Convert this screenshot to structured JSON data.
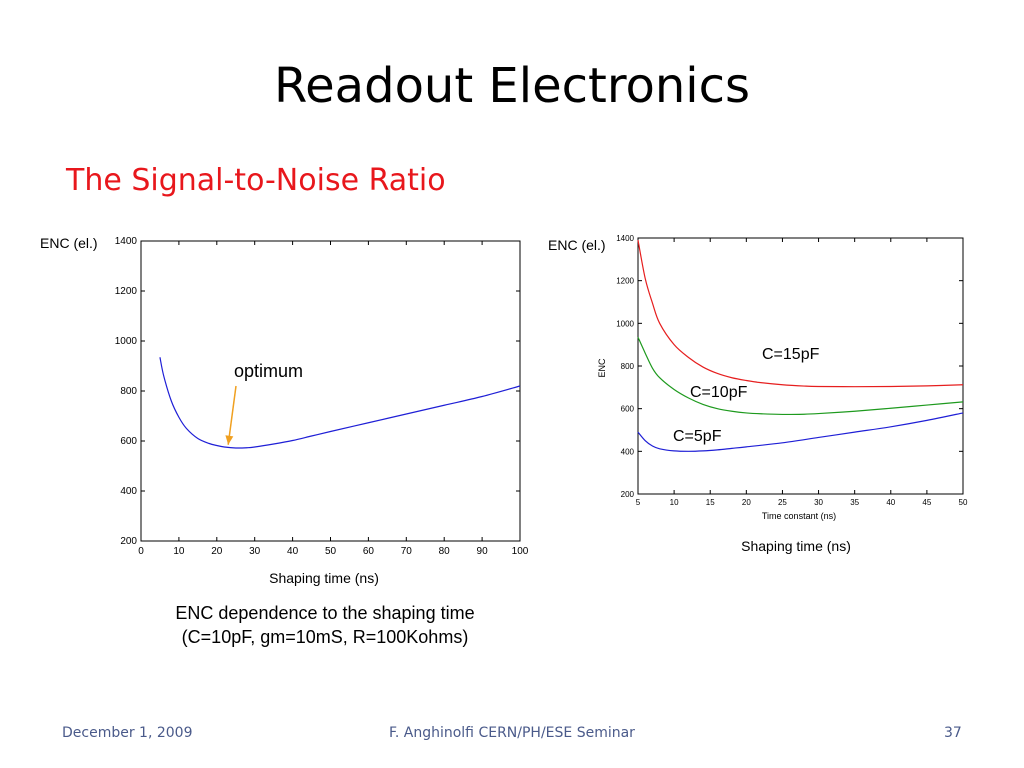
{
  "slide": {
    "title": "Readout Electronics",
    "subtitle": "The Signal-to-Noise Ratio",
    "caption_line1": "ENC dependence to the shaping time",
    "caption_line2": "(C=10pF, gm=10mS, R=100Kohms)"
  },
  "footer": {
    "date": "December 1, 2009",
    "center": "F. Anghinolfi CERN/PH/ESE Seminar",
    "page": "37"
  },
  "colors": {
    "title": "#000000",
    "subtitle": "#e8171c",
    "footer": "#4a5a8a",
    "blue": "#1f1fd6",
    "green": "#1e9a1e",
    "red": "#e61e1e",
    "arrow": "#f0a020"
  },
  "chart_data": [
    {
      "type": "line",
      "ylabel": "ENC (el.)",
      "xlabel": "Shaping time (ns)",
      "xlim": [
        0,
        100
      ],
      "ylim": [
        200,
        1400
      ],
      "xticks": [
        "0",
        "10",
        "20",
        "30",
        "40",
        "50",
        "60",
        "70",
        "80",
        "90",
        "100"
      ],
      "yticks": [
        "200",
        "400",
        "600",
        "800",
        "1000",
        "1200",
        "1400"
      ],
      "grid": false,
      "annotation": {
        "text": "optimum",
        "arrow_to": [
          23,
          585
        ]
      },
      "series": [
        {
          "color": "blue",
          "x": [
            5,
            6,
            8,
            10,
            12,
            15,
            18,
            20,
            22,
            25,
            28,
            30,
            35,
            40,
            45,
            50,
            60,
            70,
            80,
            90,
            100
          ],
          "y": [
            935,
            860,
            760,
            695,
            650,
            610,
            590,
            582,
            576,
            572,
            573,
            576,
            588,
            602,
            620,
            638,
            673,
            708,
            743,
            778,
            820
          ]
        }
      ]
    },
    {
      "type": "line",
      "ylabel": "ENC (el.)",
      "ylabel_inner": "ENC",
      "xlabel": "Shaping time (ns)",
      "xlabel_inner": "Time constant (ns)",
      "xlim": [
        5,
        50
      ],
      "ylim": [
        200,
        1400
      ],
      "xticks": [
        "5",
        "10",
        "15",
        "20",
        "25",
        "30",
        "35",
        "40",
        "45",
        "50"
      ],
      "yticks": [
        "200",
        "400",
        "600",
        "800",
        "1000",
        "1200",
        "1400"
      ],
      "grid": false,
      "series": [
        {
          "name": "C=15pF",
          "color": "red",
          "x": [
            5,
            6,
            7,
            8,
            10,
            12,
            14,
            16,
            18,
            20,
            22,
            25,
            28,
            30,
            35,
            40,
            45,
            50
          ],
          "y": [
            1390,
            1210,
            1095,
            1000,
            900,
            840,
            795,
            765,
            745,
            732,
            722,
            712,
            706,
            704,
            703,
            704,
            707,
            712
          ]
        },
        {
          "name": "C=10pF",
          "color": "green",
          "x": [
            5,
            6,
            7,
            8,
            10,
            12,
            14,
            16,
            18,
            20,
            22,
            25,
            28,
            30,
            35,
            40,
            45,
            50
          ],
          "y": [
            935,
            860,
            790,
            745,
            690,
            650,
            620,
            600,
            588,
            580,
            576,
            573,
            574,
            577,
            588,
            602,
            617,
            632
          ]
        },
        {
          "name": "C=5pF",
          "color": "blue",
          "x": [
            5,
            6,
            7,
            8,
            10,
            12,
            14,
            16,
            18,
            20,
            25,
            30,
            35,
            40,
            45,
            50
          ],
          "y": [
            490,
            450,
            425,
            412,
            402,
            400,
            402,
            407,
            414,
            421,
            440,
            465,
            490,
            515,
            545,
            580
          ]
        }
      ]
    }
  ]
}
